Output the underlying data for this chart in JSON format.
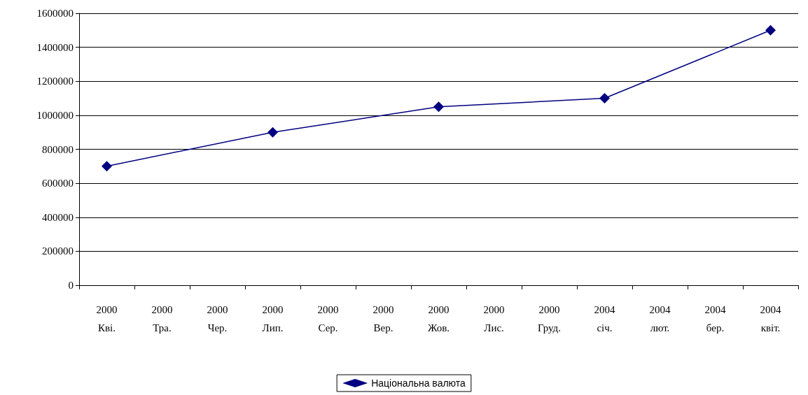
{
  "chart_data": {
    "type": "line",
    "categories": [
      "2000\nКві.",
      "2000\nТра.",
      "2000\nЧер.",
      "2000\nЛип.",
      "2000\nСер.",
      "2000\nВер.",
      "2000\nЖов.",
      "2000\nЛис.",
      "2000\nГруд.",
      "2004\nсіч.",
      "2004\nлют.",
      "2004\nбер.",
      "2004\nквіт."
    ],
    "series": [
      {
        "name": "Національна валюта",
        "color": "#000080",
        "values": [
          700000,
          null,
          null,
          900000,
          null,
          null,
          1050000,
          null,
          null,
          1100000,
          null,
          null,
          1500000
        ]
      }
    ],
    "ylim": [
      0,
      1600000
    ],
    "yticks": [
      0,
      200000,
      400000,
      600000,
      800000,
      1000000,
      1200000,
      1400000,
      1600000
    ],
    "grid": "y",
    "legend": "bottom",
    "marker": "diamond",
    "line_style": "solid"
  }
}
